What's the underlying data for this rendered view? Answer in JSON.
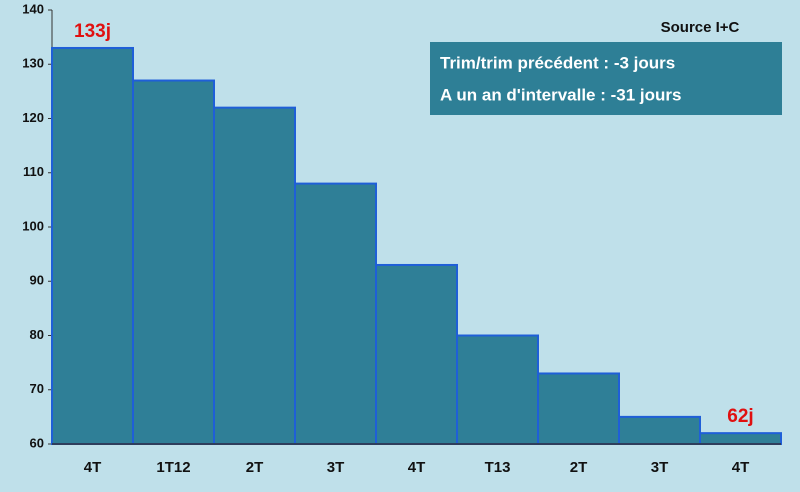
{
  "chart_data": {
    "type": "bar",
    "categories": [
      "4T",
      "1T12",
      "2T",
      "3T",
      "4T",
      "T13",
      "2T",
      "3T",
      "4T"
    ],
    "values": [
      133,
      127,
      122,
      108,
      93,
      80,
      73,
      65,
      62
    ],
    "value_labels": [
      "133j",
      null,
      null,
      null,
      null,
      null,
      null,
      null,
      "62j"
    ],
    "color": "#2f7f97",
    "ylim": [
      60,
      140
    ],
    "yticks": [
      60,
      70,
      80,
      90,
      100,
      110,
      120,
      130,
      140
    ],
    "source": "Source I+C",
    "annotations": [
      "Trim/trim précédent : -3 jours",
      "A un an d'intervalle : -31 jours"
    ]
  }
}
